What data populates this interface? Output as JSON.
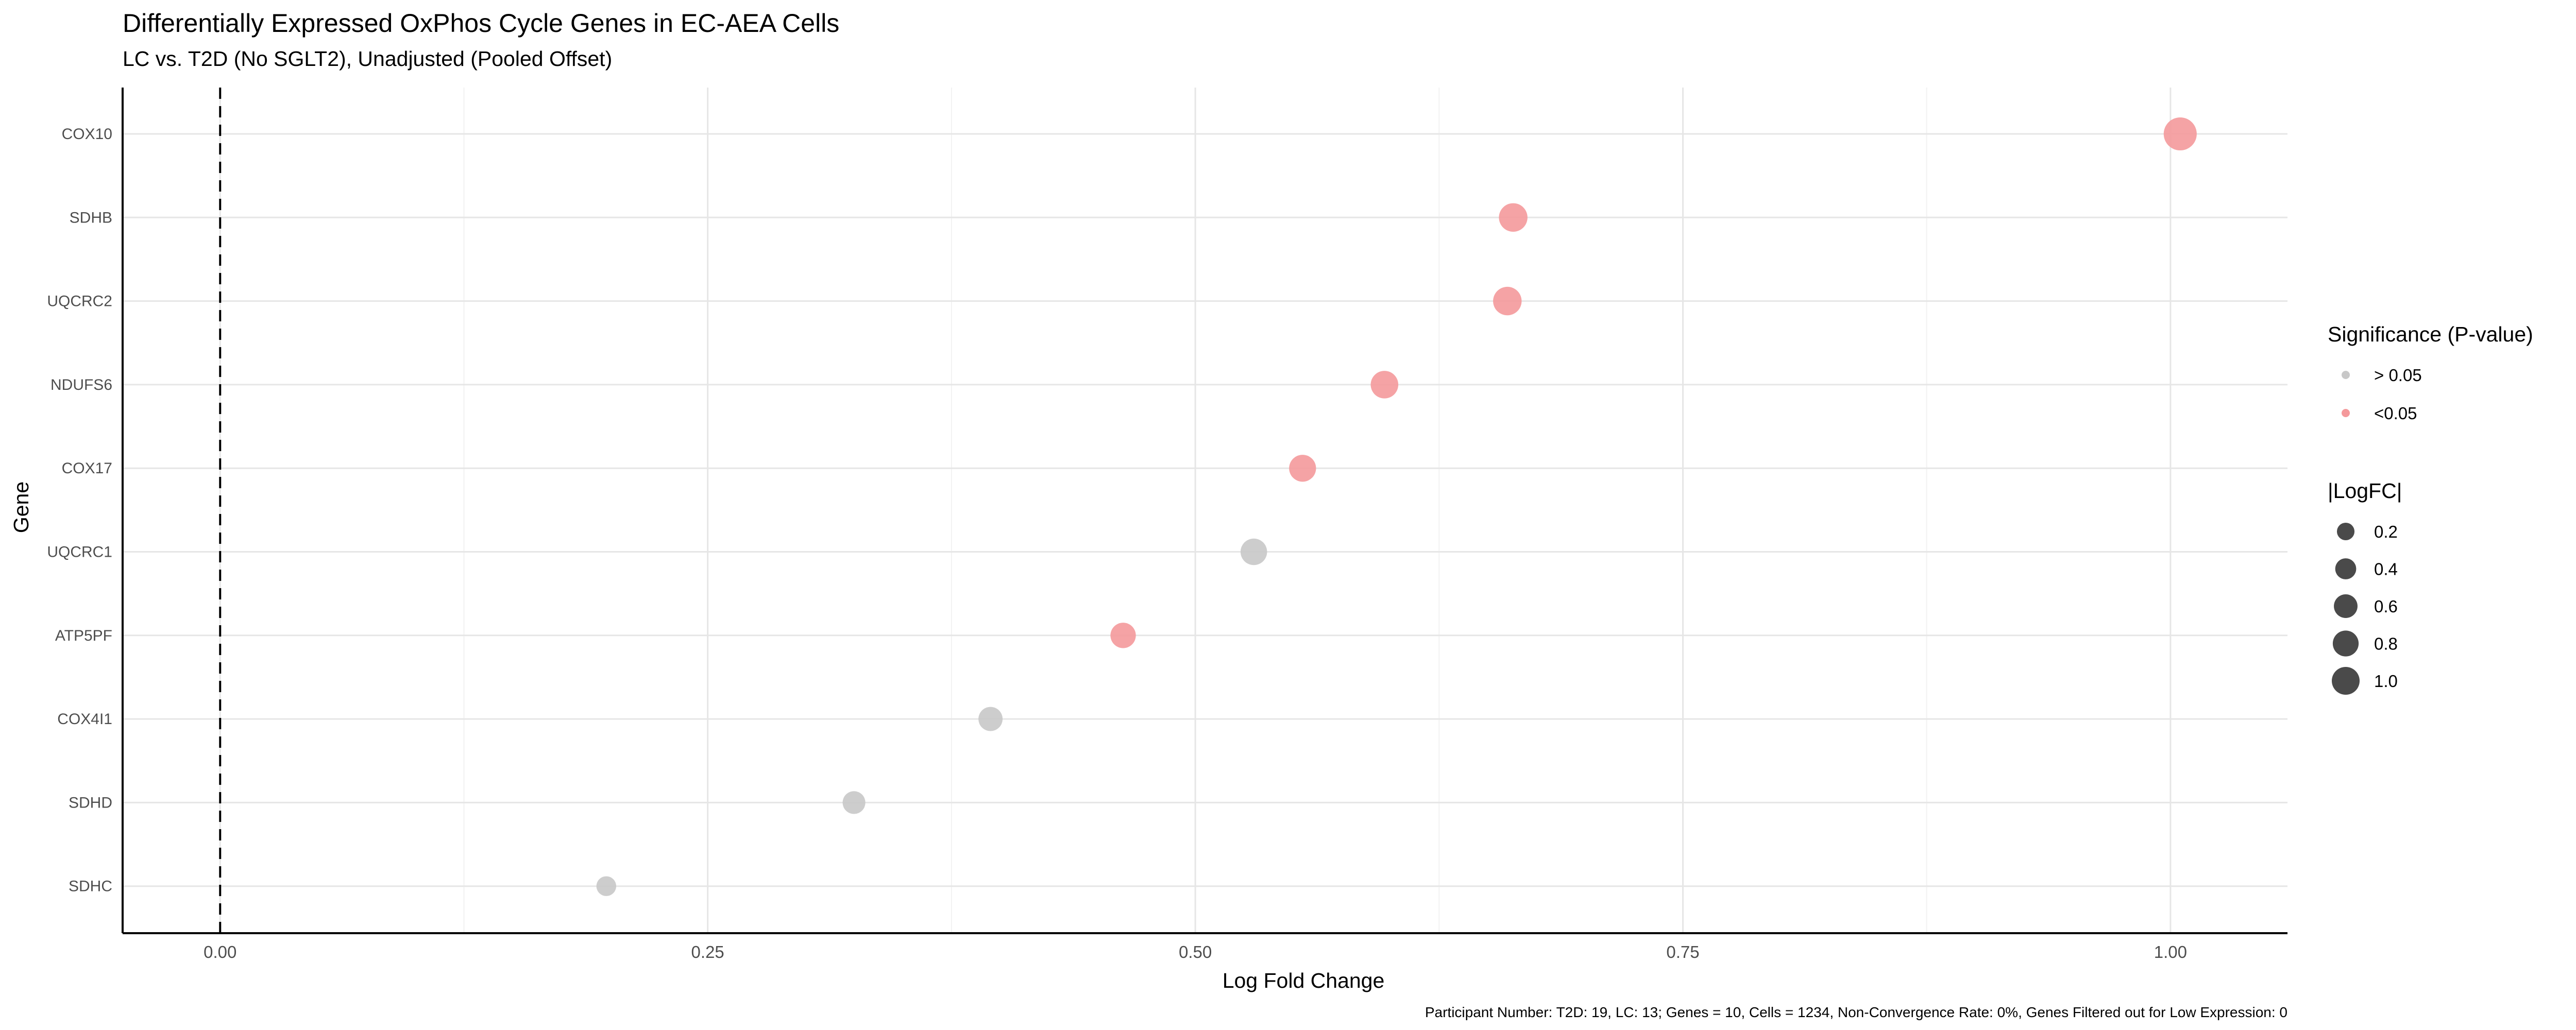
{
  "chart_data": {
    "type": "scatter",
    "title": "Differentially Expressed OxPhos Cycle Genes in EC-AEA Cells",
    "subtitle": "LC vs. T2D (No SGLT2), Unadjusted (Pooled Offset)",
    "xlabel": "Log Fold Change",
    "ylabel": "Gene",
    "xlim": [
      -0.05,
      1.06
    ],
    "xticks": [
      "0.00",
      "0.25",
      "0.50",
      "0.75",
      "1.00"
    ],
    "xtick_values": [
      0,
      0.25,
      0.5,
      0.75,
      1.0
    ],
    "grid": true,
    "reference_line": {
      "x": 0,
      "style": "dashed"
    },
    "categories": [
      "COX10",
      "SDHB",
      "UQCRC2",
      "NDUFS6",
      "COX17",
      "UQCRC1",
      "ATP5PF",
      "COX4I1",
      "SDHD",
      "SDHC"
    ],
    "points": [
      {
        "gene": "COX10",
        "logfc": 1.005,
        "significance": "<0.05"
      },
      {
        "gene": "SDHB",
        "logfc": 0.663,
        "significance": "<0.05"
      },
      {
        "gene": "UQCRC2",
        "logfc": 0.66,
        "significance": "<0.05"
      },
      {
        "gene": "NDUFS6",
        "logfc": 0.597,
        "significance": "<0.05"
      },
      {
        "gene": "COX17",
        "logfc": 0.555,
        "significance": "<0.05"
      },
      {
        "gene": "UQCRC1",
        "logfc": 0.53,
        "significance": "> 0.05"
      },
      {
        "gene": "ATP5PF",
        "logfc": 0.463,
        "significance": "<0.05"
      },
      {
        "gene": "COX4I1",
        "logfc": 0.395,
        "significance": "> 0.05"
      },
      {
        "gene": "SDHD",
        "logfc": 0.325,
        "significance": "> 0.05"
      },
      {
        "gene": "SDHC",
        "logfc": 0.198,
        "significance": "> 0.05"
      }
    ],
    "legend_placement": "right",
    "legend_color": {
      "title": "Significance (P-value)",
      "entries": [
        {
          "label": "> 0.05",
          "color": "#c8c8c8"
        },
        {
          "label": "<0.05",
          "color": "#f4999b"
        }
      ]
    },
    "legend_size": {
      "title": "|LogFC|",
      "entries": [
        {
          "label": "0.2",
          "value": 0.2
        },
        {
          "label": "0.4",
          "value": 0.4
        },
        {
          "label": "0.6",
          "value": 0.6
        },
        {
          "label": "0.8",
          "value": 0.8
        },
        {
          "label": "1.0",
          "value": 1.0
        }
      ]
    },
    "caption": "Participant Number: T2D: 19, LC: 13; Genes = 10, Cells = 1234, Non-Convergence Rate: 0%, Genes Filtered out for Low Expression: 0"
  }
}
